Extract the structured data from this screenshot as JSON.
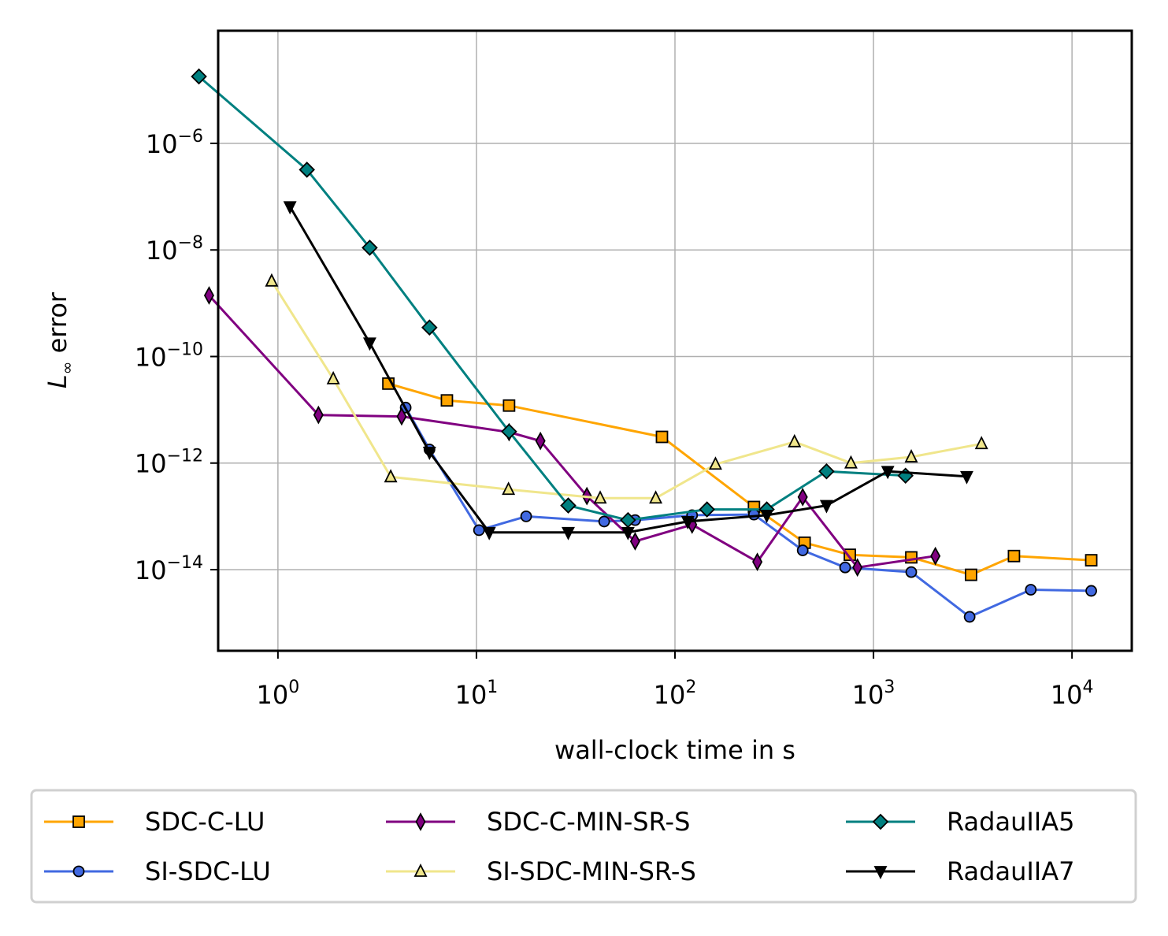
{
  "chart_data": {
    "type": "line",
    "xscale": "log",
    "yscale": "log",
    "xlabel": "wall-clock time in s",
    "ylabel_main": "L",
    "ylabel_sub": "∞",
    "ylabel_rest": " error",
    "grid": true,
    "legend_position": "below",
    "xlim": [
      0.5,
      20000
    ],
    "ylim": [
      3e-16,
      0.00013
    ],
    "xticks": [
      {
        "value": 1,
        "base": "10",
        "exp": "0"
      },
      {
        "value": 10,
        "base": "10",
        "exp": "1"
      },
      {
        "value": 100,
        "base": "10",
        "exp": "2"
      },
      {
        "value": 1000,
        "base": "10",
        "exp": "3"
      },
      {
        "value": 10000,
        "base": "10",
        "exp": "4"
      }
    ],
    "yticks": [
      {
        "value": 1e-06,
        "base": "10",
        "exp": "−6"
      },
      {
        "value": 1e-08,
        "base": "10",
        "exp": "−8"
      },
      {
        "value": 1e-10,
        "base": "10",
        "exp": "−10"
      },
      {
        "value": 1e-12,
        "base": "10",
        "exp": "−12"
      },
      {
        "value": 1e-14,
        "base": "10",
        "exp": "−14"
      }
    ],
    "series": [
      {
        "name": "SDC-C-LU",
        "color": "#FFA500",
        "marker": "square",
        "points": [
          [
            3.6,
            3.1e-11
          ],
          [
            7.1,
            1.5e-11
          ],
          [
            14.6,
            1.2e-11
          ],
          [
            86,
            3.1e-12
          ],
          [
            250,
            1.5e-13
          ],
          [
            450,
            3.2e-14
          ],
          [
            760,
            1.9e-14
          ],
          [
            1550,
            1.7e-14
          ],
          [
            3100,
            8e-15
          ],
          [
            5100,
            1.8e-14
          ],
          [
            12500,
            1.5e-14
          ]
        ]
      },
      {
        "name": "SI-SDC-LU",
        "color": "#4169E1",
        "marker": "circle",
        "points": [
          [
            4.4,
            1.1e-11
          ],
          [
            5.8,
            1.8e-12
          ],
          [
            10.3,
            5.5e-14
          ],
          [
            17.8,
            1e-13
          ],
          [
            44,
            8e-14
          ],
          [
            63,
            8.5e-14
          ],
          [
            122,
            1.05e-13
          ],
          [
            250,
            1.08e-13
          ],
          [
            440,
            2.3e-14
          ],
          [
            720,
            1.1e-14
          ],
          [
            1550,
            9e-15
          ],
          [
            3050,
            1.3e-15
          ],
          [
            6200,
            4.2e-15
          ],
          [
            12500,
            4e-15
          ]
        ]
      },
      {
        "name": "SDC-C-MIN-SR-S",
        "color": "#800080",
        "marker": "thin_diamond",
        "points": [
          [
            0.45,
            1.4e-09
          ],
          [
            1.6,
            8e-12
          ],
          [
            4.2,
            7.5e-12
          ],
          [
            14.6,
            3.8e-12
          ],
          [
            21,
            2.6e-12
          ],
          [
            36,
            2.4e-13
          ],
          [
            63,
            3.4e-14
          ],
          [
            122,
            7e-14
          ],
          [
            260,
            1.4e-14
          ],
          [
            440,
            2.3e-13
          ],
          [
            830,
            1.1e-14
          ],
          [
            2050,
            1.8e-14
          ]
        ]
      },
      {
        "name": "SI-SDC-MIN-SR-S",
        "color": "#F0E68C",
        "marker": "triangle",
        "points": [
          [
            0.93,
            2.6e-09
          ],
          [
            1.9,
            3.8e-11
          ],
          [
            3.7,
            5.5e-13
          ],
          [
            14.5,
            3.2e-13
          ],
          [
            42,
            2.2e-13
          ],
          [
            80,
            2.2e-13
          ],
          [
            160,
            9.5e-13
          ],
          [
            400,
            2.5e-12
          ],
          [
            770,
            1e-12
          ],
          [
            1550,
            1.3e-12
          ],
          [
            3500,
            2.3e-12
          ]
        ]
      },
      {
        "name": "RadauIIA5",
        "color": "#008080",
        "marker": "diamond",
        "points": [
          [
            0.4,
            1.8e-05
          ],
          [
            1.4,
            3.2e-07
          ],
          [
            2.9,
            1.1e-08
          ],
          [
            5.8,
            3.5e-10
          ],
          [
            14.6,
            3.9e-12
          ],
          [
            29,
            1.6e-13
          ],
          [
            58,
            8.5e-14
          ],
          [
            145,
            1.35e-13
          ],
          [
            290,
            1.35e-13
          ],
          [
            580,
            7e-13
          ],
          [
            1450,
            5.8e-13
          ]
        ]
      },
      {
        "name": "RadauIIA7",
        "color": "#000000",
        "marker": "triangle_down",
        "points": [
          [
            1.15,
            6.5e-08
          ],
          [
            2.9,
            1.8e-10
          ],
          [
            5.8,
            1.6e-12
          ],
          [
            11.6,
            5e-14
          ],
          [
            29,
            5e-14
          ],
          [
            58,
            5e-14
          ],
          [
            116,
            8e-14
          ],
          [
            290,
            1.05e-13
          ],
          [
            580,
            1.6e-13
          ],
          [
            1180,
            7e-13
          ],
          [
            2950,
            5.6e-13
          ]
        ]
      }
    ]
  }
}
